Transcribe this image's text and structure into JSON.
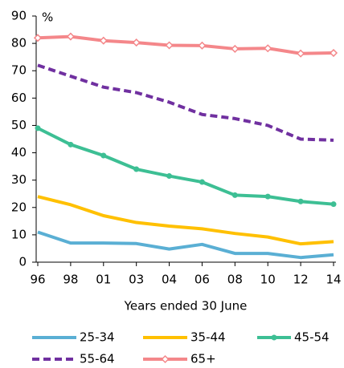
{
  "chart_data": {
    "type": "line",
    "y_unit_label": "%",
    "x_label": "Years ended 30 June",
    "categories": [
      "96",
      "98",
      "01",
      "03",
      "04",
      "06",
      "08",
      "10",
      "12",
      "14"
    ],
    "series": [
      {
        "name": "25-34",
        "color": "#5aafd4",
        "values": [
          11,
          7,
          7,
          6.8,
          4.8,
          6.5,
          3.2,
          3.2,
          1.7,
          2.7
        ]
      },
      {
        "name": "35-44",
        "color": "#ffc000",
        "values": [
          24,
          21,
          17,
          14.5,
          13.2,
          12.2,
          10.5,
          9.2,
          6.7,
          7.5
        ]
      },
      {
        "name": "45-54",
        "color": "#3dbf94",
        "marker": "circle",
        "values": [
          49,
          43,
          39,
          34,
          31.5,
          29.3,
          24.5,
          24,
          22.2,
          21.2
        ]
      },
      {
        "name": "55-64",
        "color": "#7030a0",
        "dashed": true,
        "values": [
          72,
          68,
          64,
          62,
          58.5,
          54,
          52.5,
          50,
          45,
          44.6
        ]
      },
      {
        "name": "65+",
        "color": "#f4878a",
        "marker": "diamond",
        "values": [
          82,
          82.5,
          81,
          80.3,
          79.3,
          79.2,
          78,
          78.2,
          76.3,
          76.5
        ]
      }
    ],
    "ylim": [
      0,
      90
    ],
    "yticks": [
      0,
      10,
      20,
      30,
      40,
      50,
      60,
      70,
      80,
      90
    ],
    "grid": false
  }
}
